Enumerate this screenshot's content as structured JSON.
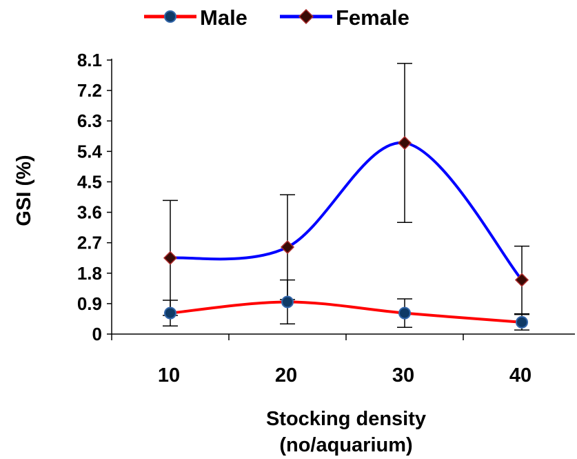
{
  "chart_data": {
    "type": "line",
    "categories": [
      "10",
      "20",
      "30",
      "40"
    ],
    "xlabel_line1": "Stocking density",
    "xlabel_line2": "(no/aquarium)",
    "ylabel": "GSI (%)",
    "yticks": [
      "0",
      "0.9",
      "1.8",
      "2.7",
      "3.6",
      "4.5",
      "5.4",
      "6.3",
      "7.2",
      "8.1"
    ],
    "ylim": [
      0,
      8.1
    ],
    "legend_position": "top",
    "series": [
      {
        "name": "Male",
        "values": [
          0.62,
          0.95,
          0.62,
          0.35
        ],
        "error": [
          0.38,
          0.65,
          0.42,
          0.23
        ],
        "line_color": "#ff0000",
        "marker": "circle",
        "marker_color": "#0f3a66"
      },
      {
        "name": "Female",
        "values": [
          2.25,
          2.57,
          5.65,
          1.6
        ],
        "error": [
          1.7,
          1.55,
          2.35,
          1.0
        ],
        "line_color": "#0000ff",
        "marker": "diamond",
        "marker_color": "#3a0a05"
      }
    ]
  }
}
